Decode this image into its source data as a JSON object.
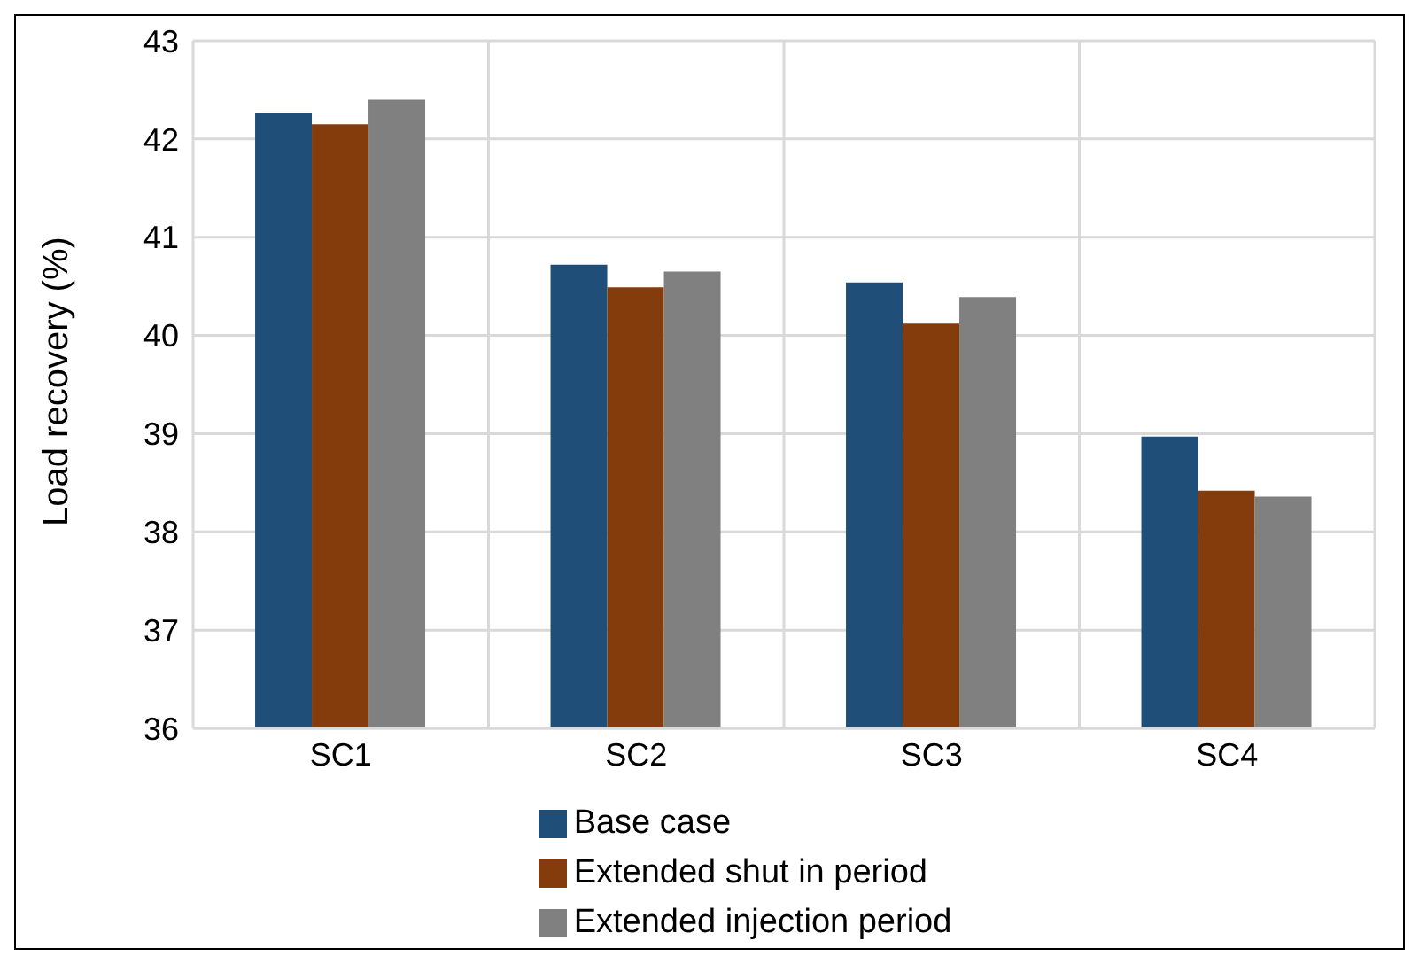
{
  "chart_data": {
    "type": "bar",
    "ylabel": "Load recovery (%)",
    "categories": [
      "SC1",
      "SC2",
      "SC3",
      "SC4"
    ],
    "series": [
      {
        "name": "Base case",
        "color": "#1f4e79",
        "values": [
          42.27,
          40.72,
          40.54,
          38.97
        ]
      },
      {
        "name": "Extended shut in period",
        "color": "#843c0c",
        "values": [
          42.15,
          40.49,
          40.12,
          38.42
        ]
      },
      {
        "name": "Extended injection period",
        "color": "#808080",
        "values": [
          42.4,
          40.65,
          40.39,
          38.36
        ]
      }
    ],
    "ylim": [
      36,
      43
    ],
    "yticks": [
      36,
      37,
      38,
      39,
      40,
      41,
      42,
      43
    ],
    "grid": true,
    "legend": "bottom"
  }
}
